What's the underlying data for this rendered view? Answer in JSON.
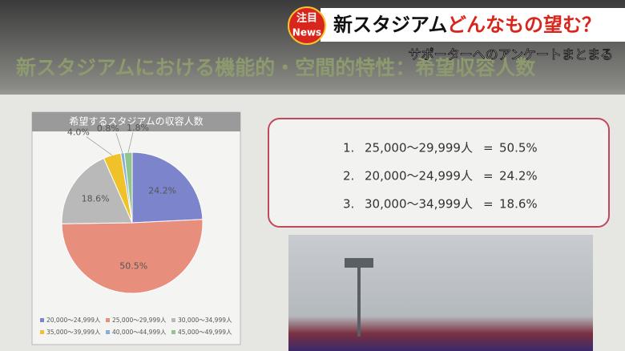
{
  "banner": {
    "badge_top": "注目",
    "badge_bottom": "News",
    "headline_black": "新スタジアム",
    "headline_red": "どんなもの望む？",
    "subheadline": "サポーターへのアンケートまとまる"
  },
  "slide_title": "新スタジアムにおける機能的・空間的特性：希望収容人数",
  "ranking": [
    {
      "rank": "1.",
      "range": "25,000〜29,999人",
      "eq": "=",
      "value": "50.5%"
    },
    {
      "rank": "2.",
      "range": "20,000〜24,999人",
      "eq": "=",
      "value": "24.2%"
    },
    {
      "rank": "3.",
      "range": "30,000〜34,999人",
      "eq": "=",
      "value": "18.6%"
    }
  ],
  "chart_data": {
    "type": "pie",
    "title": "希望するスタジアムの収容人数",
    "categories": [
      "20,000〜24,999人",
      "25,000〜29,999人",
      "30,000〜34,999人",
      "35,000〜39,999人",
      "40,000〜44,999人",
      "45,000〜49,999人"
    ],
    "values": [
      24.2,
      50.5,
      18.6,
      4.0,
      0.8,
      1.8
    ],
    "value_labels": [
      "24.2%",
      "50.5%",
      "18.6%",
      "4.0%",
      "0.8%",
      "1.8%"
    ],
    "colors": [
      "#7c84cc",
      "#e88e7c",
      "#b9b9b9",
      "#efc22a",
      "#86aedb",
      "#92c58e"
    ],
    "legend": "bottom"
  }
}
